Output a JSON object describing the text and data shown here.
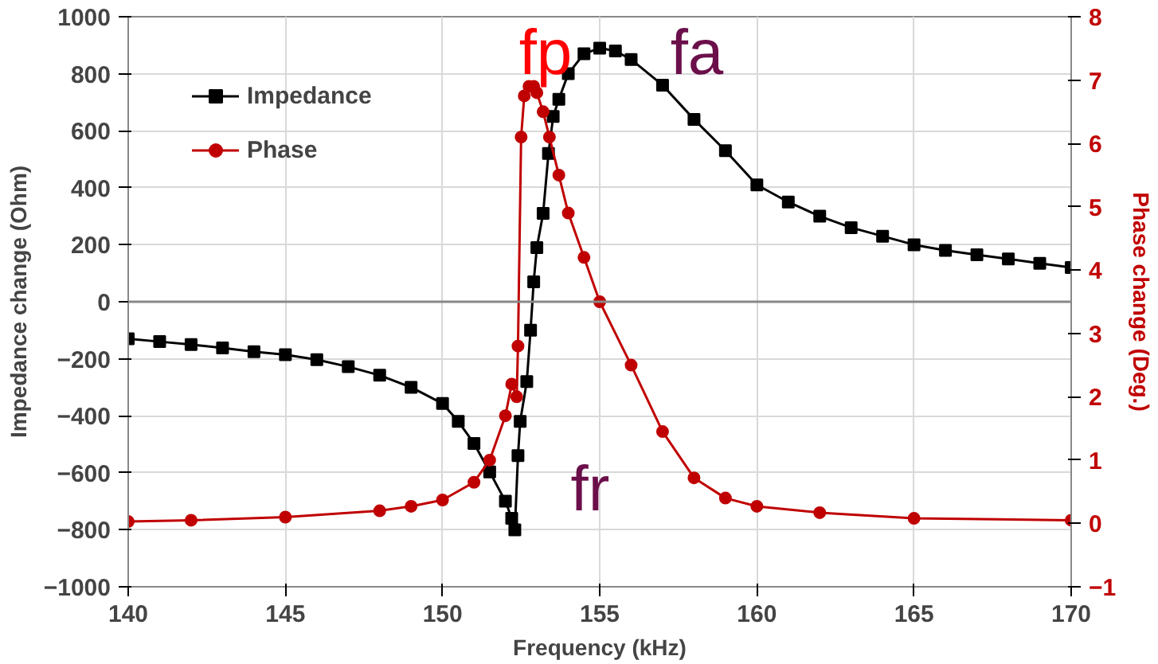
{
  "chart_data": {
    "type": "line",
    "xlabel": "Frequency (kHz)",
    "ylabel": "Impedance change (Ohm)",
    "y2label": "Phase change (Deg.)",
    "xlim": [
      140,
      170
    ],
    "xticks": [
      140,
      145,
      150,
      155,
      160,
      165,
      170
    ],
    "ylim": [
      -1000,
      1000
    ],
    "yticks": [
      -1000,
      -800,
      -600,
      -400,
      -200,
      0,
      200,
      400,
      600,
      800,
      1000
    ],
    "y2lim": [
      -1,
      8
    ],
    "y2ticks": [
      -1,
      0,
      1,
      2,
      3,
      4,
      5,
      6,
      7,
      8
    ],
    "grid": true,
    "legend": "top left",
    "line_style": "solid",
    "series": [
      {
        "name": "Impedance",
        "color": "#000000",
        "marker": "square",
        "x": [
          140,
          141,
          142,
          143,
          144,
          145,
          146,
          147,
          148,
          149,
          150,
          150.5,
          151,
          151.5,
          152,
          152.2,
          152.3,
          152.4,
          152.47,
          152.68,
          152.8,
          152.9,
          153.0,
          153.2,
          153.37,
          153.52,
          153.7,
          154,
          154.5,
          155,
          155.5,
          156,
          157,
          158,
          159,
          160,
          161,
          162,
          163,
          164,
          165,
          166,
          167,
          168,
          169,
          170
        ],
        "values": [
          -130,
          -140,
          -150,
          -162,
          -175,
          -186,
          -203,
          -228,
          -258,
          -300,
          -357,
          -420,
          -497,
          -597,
          -700,
          -760,
          -800,
          -540,
          -420,
          -280,
          -100,
          70,
          190,
          310,
          520,
          650,
          710,
          800,
          870,
          890,
          880,
          850,
          760,
          640,
          530,
          410,
          350,
          300,
          260,
          230,
          200,
          180,
          165,
          150,
          135,
          120
        ]
      },
      {
        "name": "Phase",
        "color": "#c00000",
        "marker": "circle",
        "axis": "y2",
        "x": [
          140,
          142,
          145,
          148,
          149,
          150,
          151,
          151.5,
          152,
          152.2,
          152.36,
          152.4,
          152.5,
          152.6,
          152.75,
          152.9,
          153.0,
          153.2,
          153.4,
          153.7,
          154,
          154.5,
          155,
          156,
          157,
          158,
          159,
          160,
          162,
          165,
          170
        ],
        "values": [
          0.03,
          0.05,
          0.1,
          0.2,
          0.27,
          0.37,
          0.65,
          1.0,
          1.7,
          2.2,
          2.0,
          2.8,
          6.1,
          6.75,
          6.9,
          6.9,
          6.8,
          6.5,
          6.1,
          5.5,
          4.9,
          4.2,
          3.5,
          2.5,
          1.45,
          0.72,
          0.4,
          0.27,
          0.17,
          0.08,
          0.05
        ]
      }
    ],
    "annotations": [
      "fp",
      "fa",
      "fr"
    ]
  }
}
